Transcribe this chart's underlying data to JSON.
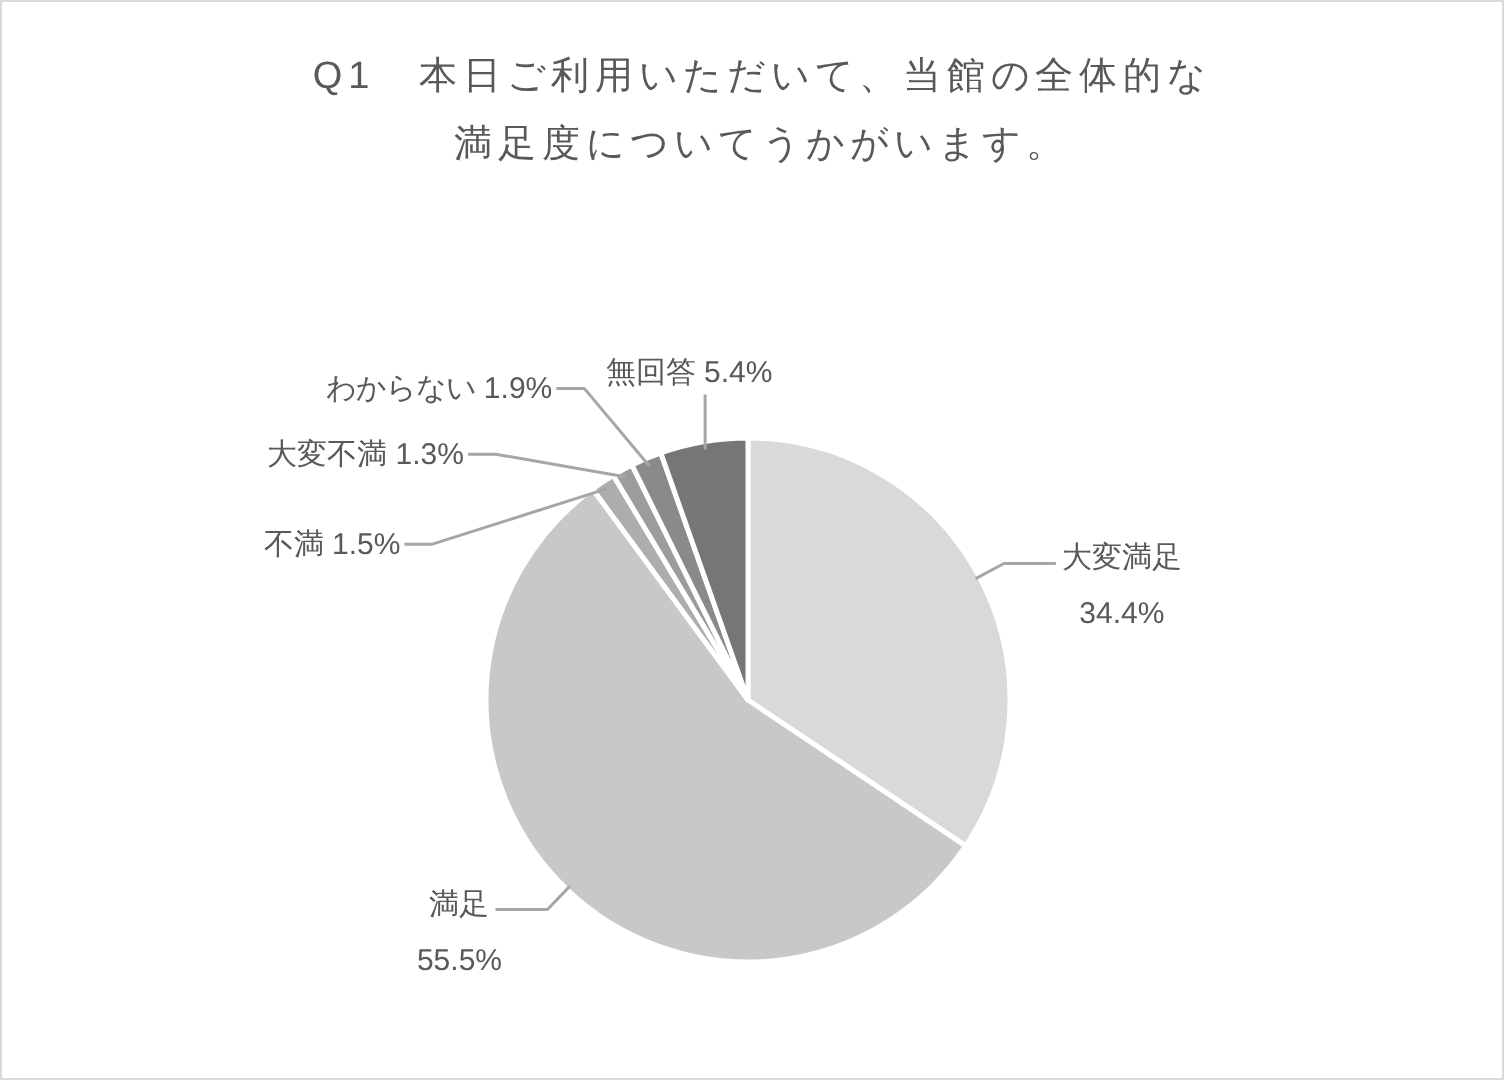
{
  "chart_data": {
    "type": "pie",
    "title": "Q1　本日ご利用いただいて、当館の全体的な満足度についてうかがいます。",
    "categories": [
      "大変満足",
      "満足",
      "不満",
      "大変不満",
      "わからない",
      "無回答"
    ],
    "values": [
      34.4,
      55.5,
      1.5,
      1.3,
      1.9,
      5.4
    ],
    "colors": [
      "#d9d9d9",
      "#c8c8c8",
      "#adadad",
      "#9c9c9c",
      "#8a8a8a",
      "#767676"
    ],
    "value_labels": [
      "34.4%",
      "55.5%",
      "1.5%",
      "1.3%",
      "1.9%",
      "5.4%"
    ]
  }
}
